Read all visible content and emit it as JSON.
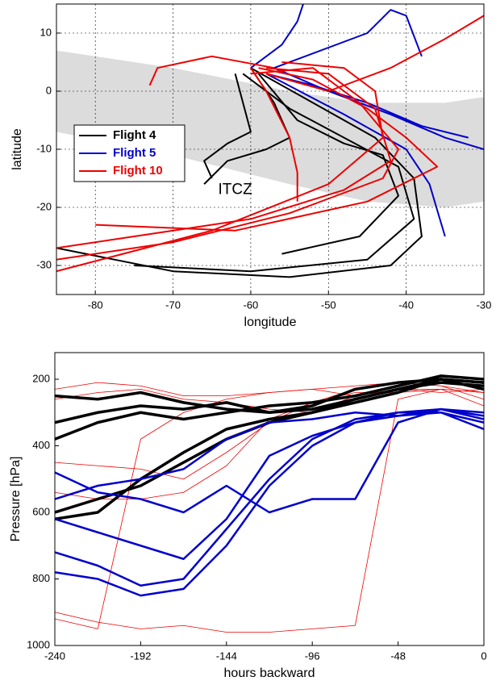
{
  "chart_data": [
    {
      "type": "trajectory",
      "xlabel": "longitude",
      "ylabel": "latitude",
      "xlim": [
        -85,
        -30
      ],
      "xticks": [
        -80,
        -70,
        -60,
        -50,
        -40,
        -30
      ],
      "ylim": [
        -35,
        15
      ],
      "yticks": [
        -30,
        -20,
        -10,
        0,
        10
      ],
      "grid": true,
      "band": {
        "label": "ITCZ",
        "color": "#dcdcdc",
        "x": [
          -85,
          -70,
          -55,
          -45,
          -35,
          -30
        ],
        "upper": [
          7,
          4,
          0,
          -2,
          -2,
          -1
        ],
        "lower": [
          -7,
          -11,
          -16,
          -19,
          -20,
          -19
        ]
      },
      "series": [
        {
          "name": "Flight 4",
          "color": "#000000",
          "linewidth": 2,
          "trajectories": [
            {
              "x": [
                -60,
                -52,
                -44,
                -39,
                -38,
                -42,
                -55,
                -70,
                -85
              ],
              "values": [
                4,
                -2,
                -8,
                -15,
                -25,
                -30,
                -32,
                -31,
                -27
              ]
            },
            {
              "x": [
                -61,
                -55,
                -48,
                -41,
                -39,
                -45,
                -60,
                -75
              ],
              "values": [
                3,
                -3,
                -8,
                -13,
                -22,
                -29,
                -31,
                -30
              ]
            },
            {
              "x": [
                -60,
                -57,
                -55,
                -58,
                -63,
                -66
              ],
              "values": [
                4,
                -2,
                -8,
                -10,
                -12,
                -16
              ]
            },
            {
              "x": [
                -59,
                -54,
                -48,
                -43,
                -41,
                -46,
                -56
              ],
              "values": [
                3,
                -5,
                -9,
                -11,
                -18,
                -25,
                -28
              ]
            },
            {
              "x": [
                -62,
                -60,
                -63,
                -66,
                -65
              ],
              "values": [
                3,
                -7,
                -9,
                -12,
                -15
              ]
            }
          ]
        },
        {
          "name": "Flight 5",
          "color": "#0000cc",
          "linewidth": 2,
          "trajectories": [
            {
              "x": [
                -58,
                -52,
                -45,
                -38,
                -32
              ],
              "values": [
                3,
                1,
                -2,
                -6,
                -8
              ]
            },
            {
              "x": [
                -57,
                -50,
                -42,
                -35,
                -30
              ],
              "values": [
                4,
                0,
                -4,
                -8,
                -10
              ]
            },
            {
              "x": [
                -60,
                -56,
                -54,
                -53
              ],
              "values": [
                4,
                8,
                12,
                16
              ]
            },
            {
              "x": [
                -58,
                -48,
                -40,
                -37,
                -35
              ],
              "values": [
                3,
                -4,
                -10,
                -16,
                -25
              ]
            },
            {
              "x": [
                -57,
                -45,
                -42,
                -40,
                -38
              ],
              "values": [
                4,
                10,
                14,
                13,
                6
              ]
            }
          ]
        },
        {
          "name": "Flight 10",
          "color": "#ee0000",
          "linewidth": 2,
          "trajectories": [
            {
              "x": [
                -58,
                -50,
                -44,
                -42,
                -48,
                -60,
                -75,
                -85
              ],
              "values": [
                4,
                3,
                -3,
                -12,
                -17,
                -22,
                -25,
                -27
              ]
            },
            {
              "x": [
                -60,
                -52,
                -46,
                -41,
                -43,
                -55,
                -70,
                -85
              ],
              "values": [
                3,
                4,
                -2,
                -10,
                -15,
                -21,
                -26,
                -29
              ]
            },
            {
              "x": [
                -57,
                -65,
                -72,
                -73
              ],
              "values": [
                4,
                6,
                4,
                1
              ]
            },
            {
              "x": [
                -58,
                -50,
                -42,
                -35,
                -30
              ],
              "values": [
                3,
                0,
                4,
                9,
                13
              ]
            },
            {
              "x": [
                -60,
                -58,
                -55,
                -54,
                -54
              ],
              "values": [
                4,
                0,
                -8,
                -14,
                -19
              ]
            },
            {
              "x": [
                -59,
                -52,
                -45,
                -40,
                -36,
                -45,
                -62,
                -80
              ],
              "values": [
                4,
                2,
                -3,
                -8,
                -13,
                -19,
                -24,
                -23
              ]
            },
            {
              "x": [
                -56,
                -48,
                -44,
                -43,
                -50,
                -65,
                -85
              ],
              "values": [
                5,
                4,
                0,
                -8,
                -16,
                -24,
                -31
              ]
            }
          ]
        }
      ]
    },
    {
      "type": "line",
      "xlabel": "hours backward",
      "ylabel": "Pressure [hPa]",
      "xlim": [
        -240,
        0
      ],
      "xticks": [
        -240,
        -192,
        -144,
        -96,
        -48,
        0
      ],
      "ylim": [
        1000,
        120
      ],
      "yticks": [
        200,
        400,
        600,
        800,
        1000
      ],
      "grid": false,
      "x": [
        -240,
        -216,
        -192,
        -168,
        -144,
        -120,
        -96,
        -72,
        -48,
        -24,
        0
      ],
      "series": [
        {
          "color": "#ee0000",
          "linewidth": 0.8,
          "values": [
            900,
            930,
            950,
            940,
            960,
            960,
            950,
            940,
            260,
            230,
            240
          ]
        },
        {
          "color": "#ee0000",
          "linewidth": 0.8,
          "values": [
            230,
            210,
            220,
            250,
            250,
            240,
            230,
            220,
            210,
            220,
            240
          ]
        },
        {
          "color": "#ee0000",
          "linewidth": 0.8,
          "values": [
            920,
            950,
            380,
            300,
            260,
            240,
            230,
            250,
            230,
            230,
            240
          ]
        },
        {
          "color": "#ee0000",
          "linewidth": 0.8,
          "values": [
            450,
            460,
            470,
            500,
            420,
            330,
            270,
            230,
            210,
            220,
            260
          ]
        },
        {
          "color": "#ee0000",
          "linewidth": 0.8,
          "values": [
            260,
            240,
            230,
            260,
            270,
            290,
            300,
            250,
            230,
            240,
            230
          ]
        },
        {
          "color": "#ee0000",
          "linewidth": 0.8,
          "values": [
            540,
            560,
            560,
            540,
            460,
            320,
            270,
            240,
            240,
            230,
            280
          ]
        },
        {
          "color": "#000000",
          "linewidth": 3.5,
          "values": [
            600,
            560,
            520,
            450,
            380,
            330,
            300,
            260,
            230,
            210,
            220
          ]
        },
        {
          "color": "#000000",
          "linewidth": 3.5,
          "values": [
            380,
            330,
            300,
            320,
            300,
            280,
            270,
            250,
            220,
            190,
            200
          ]
        },
        {
          "color": "#000000",
          "linewidth": 3.5,
          "values": [
            250,
            260,
            240,
            270,
            290,
            300,
            280,
            230,
            210,
            200,
            210
          ]
        },
        {
          "color": "#000000",
          "linewidth": 3.5,
          "values": [
            620,
            600,
            500,
            420,
            350,
            320,
            300,
            270,
            240,
            200,
            210
          ]
        },
        {
          "color": "#000000",
          "linewidth": 3.5,
          "values": [
            330,
            300,
            280,
            290,
            270,
            300,
            290,
            260,
            230,
            200,
            230
          ]
        },
        {
          "color": "#0000cc",
          "linewidth": 2.5,
          "values": [
            720,
            760,
            820,
            800,
            650,
            500,
            380,
            320,
            300,
            300,
            330
          ]
        },
        {
          "color": "#0000cc",
          "linewidth": 2.5,
          "values": [
            780,
            800,
            850,
            830,
            700,
            520,
            400,
            330,
            310,
            300,
            350
          ]
        },
        {
          "color": "#0000cc",
          "linewidth": 2.5,
          "values": [
            560,
            520,
            500,
            470,
            380,
            330,
            320,
            300,
            310,
            290,
            320
          ]
        },
        {
          "color": "#0000cc",
          "linewidth": 2.5,
          "values": [
            480,
            540,
            560,
            600,
            520,
            600,
            560,
            560,
            330,
            290,
            300
          ]
        },
        {
          "color": "#0000cc",
          "linewidth": 2.5,
          "values": [
            620,
            660,
            700,
            740,
            620,
            430,
            370,
            330,
            300,
            290,
            310
          ]
        }
      ]
    }
  ]
}
